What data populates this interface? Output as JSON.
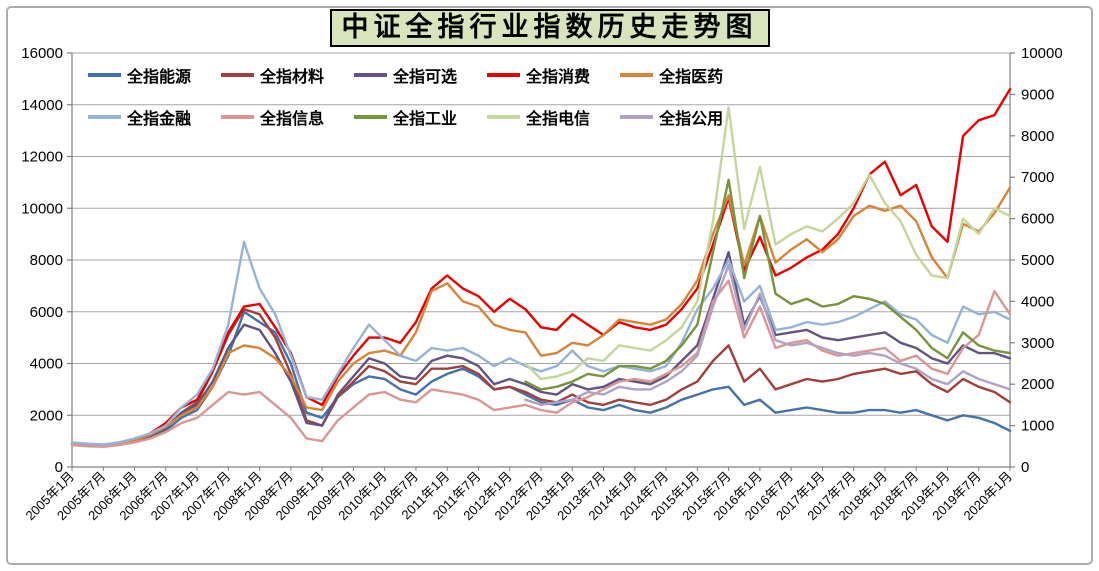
{
  "window": {
    "background": "#FFFFFF",
    "frame_border_color": "#ABABAB"
  },
  "title": {
    "text": "中证全指行业指数历史走势图",
    "bg_color": "#D7E4BC",
    "border_color": "#000000",
    "text_color": "#000000"
  },
  "chart_data": {
    "type": "line",
    "title": "中证全指行业指数历史走势图",
    "legend_position": "top-left-inside",
    "grid": "horizontal-only",
    "grid_color": "#A6A6A6",
    "axis_color": "#808080",
    "x_months_per_tick": 6,
    "x_total_months": 180,
    "sample_interval_months": 3,
    "x_tick_labels": [
      "2005年1月",
      "2005年7月",
      "2006年1月",
      "2006年7月",
      "2007年1月",
      "2007年7月",
      "2008年1月",
      "2008年7月",
      "2009年1月",
      "2009年7月",
      "2010年1月",
      "2010年7月",
      "2011年1月",
      "2011年7月",
      "2012年1月",
      "2012年7月",
      "2013年1月",
      "2013年7月",
      "2014年1月",
      "2014年7月",
      "2015年1月",
      "2015年7月",
      "2016年1月",
      "2016年7月",
      "2017年1月",
      "2017年7月",
      "2018年1月",
      "2018年7月",
      "2019年1月",
      "2019年7月",
      "2020年1月"
    ],
    "left_axis": {
      "min": 0,
      "max": 16000,
      "step": 2000,
      "tick_labels": [
        "0",
        "2000",
        "4000",
        "6000",
        "8000",
        "10000",
        "12000",
        "14000",
        "16000"
      ]
    },
    "right_axis": {
      "min": 0,
      "max": 10000,
      "step": 1000,
      "tick_labels": [
        "0",
        "1000",
        "2000",
        "3000",
        "4000",
        "5000",
        "6000",
        "7000",
        "8000",
        "9000",
        "10000"
      ]
    },
    "series": [
      {
        "name": "全指能源",
        "color": "#4572A7",
        "axis": "left",
        "start_month": 0,
        "values": [
          900,
          870,
          830,
          900,
          1000,
          1150,
          1400,
          1900,
          2200,
          3100,
          4300,
          6000,
          5600,
          5200,
          4000,
          2100,
          1900,
          2700,
          3200,
          3500,
          3400,
          3000,
          2800,
          3300,
          3600,
          3800,
          3500,
          3000,
          3100,
          2800,
          2500,
          2400,
          2600,
          2300,
          2200,
          2400,
          2200,
          2100,
          2300,
          2600,
          2800,
          3000,
          3100,
          2400,
          2600,
          2100,
          2200,
          2300,
          2200,
          2100,
          2100,
          2200,
          2200,
          2100,
          2200,
          2000,
          1800,
          2000,
          1900,
          1700,
          1400
        ]
      },
      {
        "name": "全指材料",
        "color": "#A0403C",
        "axis": "left",
        "start_month": 0,
        "values": [
          900,
          850,
          820,
          900,
          1000,
          1200,
          1500,
          2100,
          2500,
          3700,
          5100,
          6100,
          5900,
          5000,
          3600,
          1800,
          1600,
          2700,
          3300,
          3900,
          3700,
          3300,
          3200,
          3800,
          3800,
          3900,
          3600,
          3000,
          3100,
          2900,
          2600,
          2500,
          2800,
          2500,
          2400,
          2600,
          2500,
          2400,
          2600,
          3000,
          3300,
          4100,
          4700,
          3300,
          3800,
          3000,
          3200,
          3400,
          3300,
          3400,
          3600,
          3700,
          3800,
          3600,
          3700,
          3200,
          2900,
          3400,
          3100,
          2900,
          2500
        ]
      },
      {
        "name": "全指可选",
        "color": "#635380",
        "axis": "left",
        "start_month": 0,
        "values": [
          900,
          860,
          820,
          900,
          1000,
          1200,
          1500,
          2100,
          2400,
          3300,
          4600,
          5500,
          5300,
          4400,
          3300,
          1700,
          1600,
          2800,
          3500,
          4200,
          4000,
          3500,
          3400,
          4100,
          4300,
          4200,
          3900,
          3200,
          3400,
          3200,
          2900,
          2800,
          3200,
          3000,
          3100,
          3400,
          3300,
          3200,
          3500,
          4100,
          4700,
          6500,
          8300,
          5500,
          6600,
          5100,
          5200,
          5300,
          5000,
          4900,
          5000,
          5100,
          5200,
          4800,
          4600,
          4200,
          4000,
          4700,
          4400,
          4400,
          4200
        ]
      },
      {
        "name": "全指消费",
        "color": "#E60000",
        "axis": "left",
        "start_month": 0,
        "values": [
          900,
          880,
          850,
          950,
          1050,
          1300,
          1700,
          2300,
          2600,
          3700,
          5200,
          6200,
          6300,
          5400,
          4400,
          2700,
          2400,
          3500,
          4300,
          5000,
          5000,
          4800,
          5600,
          6900,
          7400,
          6900,
          6600,
          6000,
          6500,
          6100,
          5400,
          5300,
          5900,
          5500,
          5100,
          5600,
          5400,
          5300,
          5500,
          6100,
          6900,
          8600,
          10400,
          7600,
          8900,
          7400,
          7700,
          8100,
          8400,
          9000,
          10000,
          11300,
          11800,
          10500,
          10900,
          9300,
          8700,
          12800,
          13400,
          13600,
          14600
        ]
      },
      {
        "name": "全指医药",
        "color": "#D88438",
        "axis": "left",
        "start_month": 0,
        "values": [
          900,
          880,
          850,
          930,
          1030,
          1250,
          1550,
          2000,
          2300,
          3100,
          4400,
          4700,
          4600,
          4200,
          3500,
          2300,
          2200,
          3300,
          4000,
          4400,
          4500,
          4300,
          5200,
          6800,
          7100,
          6400,
          6200,
          5500,
          5300,
          5200,
          4300,
          4400,
          4800,
          4700,
          5100,
          5700,
          5600,
          5500,
          5700,
          6300,
          7200,
          9000,
          10500,
          7800,
          9700,
          7900,
          8400,
          8800,
          8300,
          8800,
          9700,
          10100,
          9900,
          10100,
          9500,
          8100,
          7300,
          9400,
          9100,
          9800,
          10800
        ]
      },
      {
        "name": "全指金融",
        "color": "#95B3D7",
        "axis": "left",
        "start_month": 0,
        "values": [
          950,
          900,
          870,
          950,
          1100,
          1300,
          1600,
          2300,
          2800,
          3800,
          5500,
          8700,
          6900,
          5900,
          4300,
          2700,
          2600,
          3600,
          4600,
          5500,
          4900,
          4300,
          4100,
          4600,
          4500,
          4600,
          4300,
          3900,
          4200,
          3900,
          3700,
          3900,
          4500,
          3900,
          3700,
          3900,
          3800,
          3700,
          3900,
          4800,
          6100,
          6900,
          8000,
          6400,
          7000,
          5300,
          5400,
          5600,
          5500,
          5600,
          5800,
          6100,
          6400,
          5900,
          5700,
          5100,
          4800,
          6200,
          5900,
          6000,
          5700
        ]
      },
      {
        "name": "全指信息",
        "color": "#D99694",
        "axis": "left",
        "start_month": 0,
        "values": [
          850,
          800,
          780,
          850,
          950,
          1100,
          1350,
          1700,
          1900,
          2400,
          2900,
          2800,
          2900,
          2400,
          1900,
          1100,
          1000,
          1800,
          2300,
          2800,
          2900,
          2600,
          2500,
          3000,
          2900,
          2800,
          2600,
          2200,
          2300,
          2400,
          2200,
          2100,
          2500,
          2700,
          3000,
          3300,
          3400,
          3300,
          3600,
          3900,
          4400,
          6400,
          7200,
          5000,
          6200,
          4600,
          4800,
          4900,
          4500,
          4300,
          4400,
          4500,
          4600,
          4100,
          4300,
          3800,
          3600,
          4600,
          5100,
          6800,
          5900
        ]
      },
      {
        "name": "全指工业",
        "color": "#77933C",
        "axis": "left",
        "start_month": 87,
        "values": [
          3300,
          3000,
          3100,
          3300,
          3600,
          3500,
          3900,
          3900,
          3800,
          4100,
          4700,
          5500,
          8300,
          11100,
          7300,
          9700,
          6700,
          6300,
          6500,
          6200,
          6300,
          6600,
          6500,
          6300,
          5800,
          5300,
          4600,
          4200,
          5200,
          4700,
          4500,
          4400
        ]
      },
      {
        "name": "全指电信",
        "color": "#C3D69B",
        "axis": "left",
        "start_month": 87,
        "values": [
          4000,
          3400,
          3500,
          3700,
          4200,
          4100,
          4700,
          4600,
          4500,
          4900,
          5400,
          6400,
          9500,
          13900,
          9200,
          11600,
          8600,
          9000,
          9300,
          9100,
          9600,
          10200,
          11300,
          10200,
          9500,
          8200,
          7400,
          7300,
          9600,
          9000,
          10000,
          9700
        ]
      },
      {
        "name": "全指公用",
        "color": "#AFA2C5",
        "axis": "left",
        "start_month": 87,
        "values": [
          2600,
          2400,
          2500,
          2600,
          2900,
          2800,
          3100,
          3000,
          3000,
          3300,
          3700,
          4300,
          6200,
          7800,
          5300,
          6700,
          4900,
          4700,
          4800,
          4600,
          4400,
          4300,
          4400,
          4300,
          4000,
          3800,
          3400,
          3200,
          3700,
          3400,
          3200,
          3000
        ]
      }
    ]
  }
}
